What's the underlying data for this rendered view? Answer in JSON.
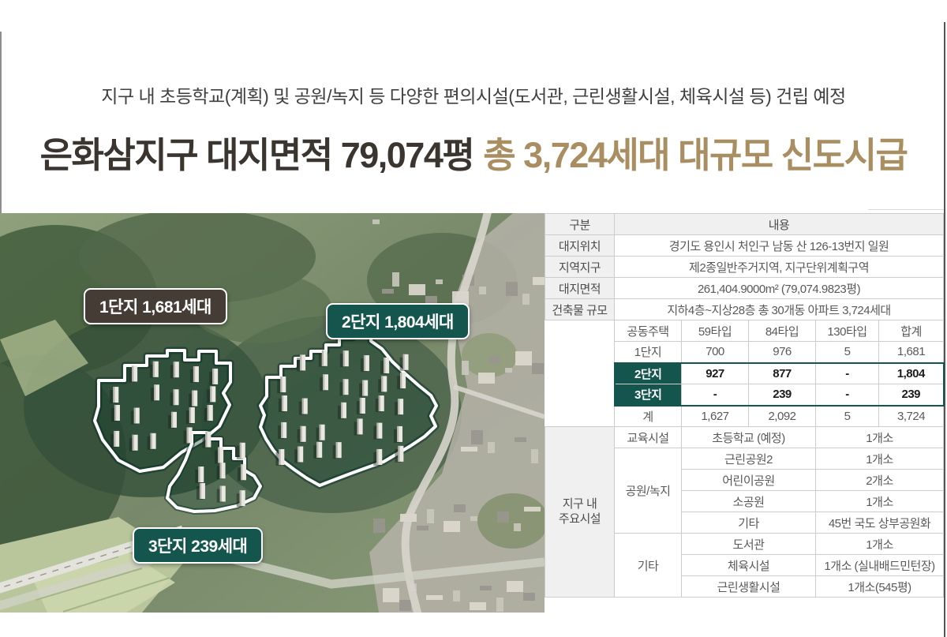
{
  "header": {
    "subtitle": "지구 내 초등학교(계획) 및 공원/녹지 등 다양한 편의시설(도서관, 근린생활시설, 체육시설 등) 건립 예정",
    "title_main": "은화삼지구 대지면적 79,074평",
    "title_accent": "총 3,724세대 대규모 신도시급"
  },
  "photo": {
    "labels": [
      {
        "text": "1단지 1,681세대"
      },
      {
        "text": "2단지 1,804세대"
      },
      {
        "text": "3단지 239세대"
      }
    ]
  },
  "table": {
    "header": {
      "col1": "구분",
      "col2": "내용"
    },
    "info_rows": [
      {
        "label": "대지위치",
        "value": "경기도 용인시 처인구 남동 산 126-13번지 일원"
      },
      {
        "label": "지역지구",
        "value": "제2종일반주거지역, 지구단위계획구역"
      },
      {
        "label": "대지면적",
        "value": "261,404.9000m² (79,074.9823평)"
      },
      {
        "label": "건축물 규모",
        "value": "지하4층~지상28층 총 30개동 아파트 3,724세대"
      }
    ],
    "housing": {
      "headers": [
        "공동주택",
        "59타입",
        "84타입",
        "130타입",
        "합계"
      ],
      "rows": [
        {
          "label": "1단지",
          "values": [
            "700",
            "976",
            "5",
            "1,681"
          ],
          "highlight": false
        },
        {
          "label": "2단지",
          "values": [
            "927",
            "877",
            "-",
            "1,804"
          ],
          "highlight": true
        },
        {
          "label": "3단지",
          "values": [
            "-",
            "239",
            "-",
            "239"
          ],
          "highlight": true
        },
        {
          "label": "계",
          "values": [
            "1,627",
            "2,092",
            "5",
            "3,724"
          ],
          "highlight": false
        }
      ]
    },
    "facilities": {
      "group_label": "지구 내\n주요시설",
      "rows": [
        {
          "category": "교육시설",
          "name": "초등학교 (예정)",
          "count": "1개소"
        },
        {
          "category": "공원/녹지",
          "name": "근린공원2",
          "count": "1개소"
        },
        {
          "category": "",
          "name": "어린이공원",
          "count": "2개소"
        },
        {
          "category": "",
          "name": "소공원",
          "count": "1개소"
        },
        {
          "category": "",
          "name": "기타",
          "count": "45번 국도 상부공원화"
        },
        {
          "category": "기타",
          "name": "도서관",
          "count": "1개소"
        },
        {
          "category": "",
          "name": "체육시설",
          "count": "1개소 (실내배드민턴장)"
        },
        {
          "category": "",
          "name": "근린생활시설",
          "count": "1개소(545평)"
        }
      ]
    }
  },
  "colors": {
    "accent_gold": "#a88e61",
    "title_dark": "#3b3530",
    "subtitle": "#404040",
    "teal": "#14564e",
    "badge1_bg": "#453c35",
    "table_border": "#cccccc",
    "label_bg": "#f0f0f0"
  }
}
